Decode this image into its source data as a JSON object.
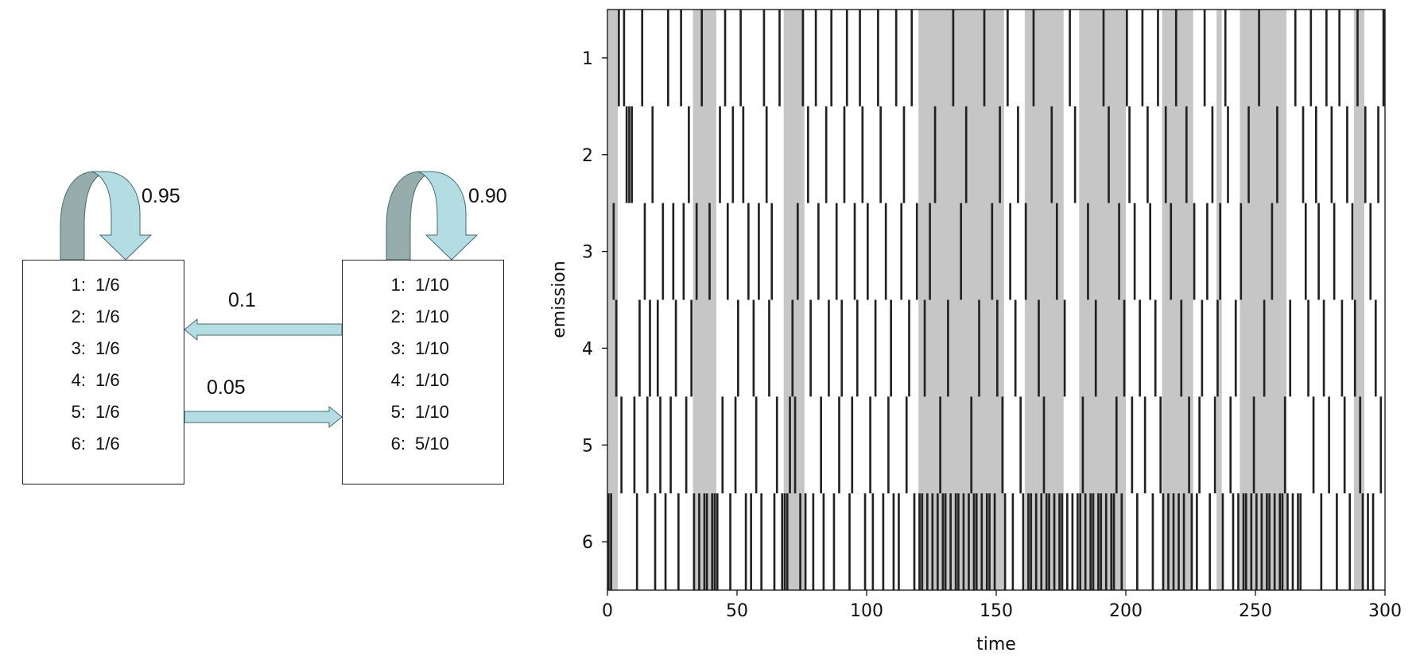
{
  "diagram": {
    "states": [
      {
        "id": "fair",
        "emissions": [
          {
            "face": "1:",
            "prob": "1/6"
          },
          {
            "face": "2:",
            "prob": "1/6"
          },
          {
            "face": "3:",
            "prob": "1/6"
          },
          {
            "face": "4:",
            "prob": "1/6"
          },
          {
            "face": "5:",
            "prob": "1/6"
          },
          {
            "face": "6:",
            "prob": "1/6"
          }
        ],
        "self_transition": "0.95"
      },
      {
        "id": "loaded",
        "emissions": [
          {
            "face": "1:",
            "prob": "1/10"
          },
          {
            "face": "2:",
            "prob": "1/10"
          },
          {
            "face": "3:",
            "prob": "1/10"
          },
          {
            "face": "4:",
            "prob": "1/10"
          },
          {
            "face": "5:",
            "prob": "1/10"
          },
          {
            "face": "6:",
            "prob": "5/10"
          }
        ],
        "self_transition": "0.90"
      }
    ],
    "transition_loaded_to_fair": "0.1",
    "transition_fair_to_loaded": "0.05",
    "colors": {
      "arrow_fill": "#b3dde3",
      "arrow_shade": "#97adab",
      "arrow_outline": "#3f6e72"
    }
  },
  "chart_data": {
    "type": "heatmap",
    "xlabel": "time",
    "ylabel": "emission",
    "xlim": [
      0,
      300
    ],
    "xticks": [
      "0",
      "50",
      "100",
      "150",
      "200",
      "250",
      "300"
    ],
    "xtick_values": [
      0,
      50,
      100,
      150,
      200,
      250,
      300
    ],
    "yticks": [
      "1",
      "2",
      "3",
      "4",
      "5",
      "6"
    ],
    "y_categories": [
      1,
      2,
      3,
      4,
      5,
      6
    ],
    "emission_color": "#222222",
    "loaded_region_color": "#c6c6c6",
    "loaded_intervals": [
      [
        0,
        4
      ],
      [
        33,
        42
      ],
      [
        68,
        76
      ],
      [
        120,
        153
      ],
      [
        161,
        176
      ],
      [
        182,
        200
      ],
      [
        214,
        226
      ],
      [
        235,
        237
      ],
      [
        244,
        262
      ],
      [
        288,
        292
      ]
    ],
    "emissions": [
      6,
      6,
      3,
      4,
      1,
      5,
      1,
      2,
      2,
      2,
      5,
      6,
      4,
      1,
      3,
      5,
      4,
      2,
      6,
      4,
      5,
      3,
      6,
      1,
      5,
      3,
      4,
      6,
      1,
      3,
      5,
      2,
      4,
      6,
      3,
      6,
      1,
      6,
      6,
      3,
      6,
      6,
      6,
      2,
      5,
      1,
      3,
      6,
      2,
      5,
      4,
      1,
      2,
      6,
      3,
      6,
      4,
      5,
      3,
      6,
      1,
      2,
      4,
      3,
      6,
      5,
      1,
      6,
      6,
      6,
      5,
      4,
      5,
      3,
      6,
      1,
      6,
      2,
      4,
      6,
      1,
      3,
      5,
      6,
      2,
      4,
      1,
      6,
      3,
      5,
      4,
      2,
      1,
      6,
      5,
      3,
      4,
      1,
      2,
      6,
      3,
      5,
      6,
      4,
      1,
      2,
      6,
      3,
      5,
      4,
      6,
      1,
      6,
      3,
      2,
      5,
      4,
      1,
      6,
      3,
      6,
      6,
      4,
      6,
      3,
      6,
      2,
      6,
      5,
      6,
      6,
      4,
      6,
      1,
      6,
      6,
      3,
      6,
      2,
      6,
      5,
      6,
      6,
      4,
      6,
      1,
      6,
      6,
      3,
      6,
      4,
      2,
      5,
      6,
      1,
      3,
      6,
      4,
      2,
      5,
      6,
      3,
      6,
      6,
      1,
      6,
      4,
      6,
      5,
      6,
      6,
      2,
      6,
      3,
      6,
      6,
      4,
      6,
      1,
      6,
      2,
      6,
      6,
      5,
      6,
      3,
      6,
      6,
      4,
      6,
      6,
      1,
      6,
      2,
      6,
      6,
      5,
      3,
      6,
      4,
      1,
      2,
      5,
      3,
      6,
      4,
      1,
      5,
      2,
      3,
      6,
      4,
      1,
      5,
      6,
      2,
      6,
      3,
      6,
      1,
      6,
      4,
      6,
      2,
      5,
      6,
      3,
      6,
      5,
      4,
      1,
      3,
      6,
      2,
      5,
      4,
      3,
      6,
      1,
      2,
      5,
      6,
      4,
      6,
      3,
      6,
      6,
      2,
      6,
      5,
      6,
      1,
      6,
      4,
      6,
      6,
      3,
      6,
      2,
      6,
      6,
      5,
      6,
      4,
      6,
      1,
      6,
      6,
      2,
      3,
      4,
      1,
      5,
      2,
      3,
      6,
      4,
      1,
      5,
      2,
      3,
      6,
      1,
      4,
      5,
      2,
      6,
      3,
      4,
      1,
      5,
      6,
      2,
      6,
      3,
      6,
      4,
      2,
      5,
      1
    ]
  }
}
